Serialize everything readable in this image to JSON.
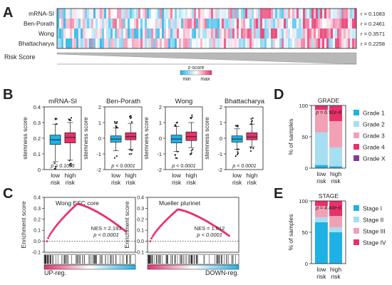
{
  "panels": {
    "A": "A",
    "B": "B",
    "C": "C",
    "D": "D",
    "E": "E"
  },
  "colors": {
    "blue": "#1fb1e6",
    "pink": "#e8306a",
    "lightblue": "#a6def2",
    "lightpink": "#f2a0b4",
    "purple": "#7e3d96",
    "grey": "#888888"
  },
  "chart_data": [
    {
      "type": "heatmap",
      "panel": "A",
      "rows": [
        {
          "label": "mRNA-SI",
          "r": "r = 0.1083"
        },
        {
          "label": "Ben-Porath",
          "r": "r = 0.2461"
        },
        {
          "label": "Wong",
          "r": "r = 0.3571"
        },
        {
          "label": "Bhattacharya",
          "r": "r = 0.2258"
        }
      ],
      "risk_label": "Risk Score",
      "colorbar": {
        "title": "z-score",
        "min_label": "min",
        "max_label": "max"
      }
    },
    {
      "type": "box",
      "panel": "B",
      "ylabel": "stemness score",
      "categories": [
        "low\nrisk",
        "high\nrisk"
      ],
      "cat_lines": [
        [
          "low",
          "risk"
        ],
        [
          "high",
          "risk"
        ]
      ],
      "plots": [
        {
          "title": "mRNA-SI",
          "ylim": [
            0,
            0.4
          ],
          "yticks": [
            0,
            0.1,
            0.2,
            0.3,
            0.4
          ],
          "ytick_labels": [
            "0",
            "0.1",
            "0.2",
            "0.3",
            "0.4"
          ],
          "p": "p = 0.1035",
          "boxes": [
            {
              "min": 0.05,
              "q1": 0.16,
              "median": 0.19,
              "q3": 0.22,
              "max": 0.29
            },
            {
              "min": 0.06,
              "q1": 0.17,
              "median": 0.205,
              "q3": 0.235,
              "max": 0.3
            }
          ]
        },
        {
          "title": "Ben-Porath",
          "ylim": [
            -2,
            2
          ],
          "yticks": [
            -2,
            -1,
            0,
            1,
            2
          ],
          "ytick_labels": [
            "-2",
            "-1",
            "0",
            "1",
            "2"
          ],
          "p": "p < 0.0001",
          "boxes": [
            {
              "min": -0.8,
              "q1": -0.25,
              "median": -0.05,
              "q3": 0.15,
              "max": 0.65
            },
            {
              "min": -0.7,
              "q1": -0.1,
              "median": 0.1,
              "q3": 0.35,
              "max": 0.95
            }
          ]
        },
        {
          "title": "Wong",
          "ylim": [
            -2,
            2
          ],
          "yticks": [
            -2,
            -1,
            0,
            1,
            2
          ],
          "ytick_labels": [
            "-2",
            "-1",
            "0",
            "1",
            "2"
          ],
          "p": "p < 0.0001",
          "boxes": [
            {
              "min": -0.85,
              "q1": -0.3,
              "median": -0.05,
              "q3": 0.2,
              "max": 0.75
            },
            {
              "min": -0.6,
              "q1": -0.15,
              "median": 0.1,
              "q3": 0.4,
              "max": 1.0
            }
          ]
        },
        {
          "title": "Bhattacharya",
          "ylim": [
            -2,
            2
          ],
          "yticks": [
            -2,
            -1,
            0,
            1,
            2
          ],
          "ytick_labels": [
            "-2",
            "-1",
            "0",
            "1",
            "2"
          ],
          "p": "p < 0.0001",
          "boxes": [
            {
              "min": -0.7,
              "q1": -0.25,
              "median": -0.05,
              "q3": 0.15,
              "max": 0.6
            },
            {
              "min": -0.55,
              "q1": -0.1,
              "median": 0.08,
              "q3": 0.35,
              "max": 0.9
            }
          ]
        }
      ]
    },
    {
      "type": "line",
      "panel": "C",
      "ylabel": "Enrichment score",
      "ylim": [
        -0.1,
        0.4
      ],
      "yticks": [
        -0.1,
        0,
        0.1,
        0.2,
        0.3,
        0.4
      ],
      "ytick_labels": [
        "-0.1",
        "0.0",
        "0.1",
        "0.2",
        "0.3",
        "0.4"
      ],
      "up_label": "UP-reg.",
      "down_label": "DOWN-reg.",
      "plots": [
        {
          "title": "Wong ESC core",
          "nes": "NES = 2.193",
          "p": "p < 0.0001",
          "peak": 0.34,
          "peak_pos": 0.35,
          "end": 0.09
        },
        {
          "title": "Mueller plurinet",
          "nes": "NES = 1.812",
          "p": "p < 0.0001",
          "peak": 0.29,
          "peak_pos": 0.32,
          "end": 0.05
        }
      ]
    },
    {
      "type": "bar",
      "panel": "D",
      "title": "GRADE",
      "ylabel": "% of samples",
      "ylim": [
        0,
        100
      ],
      "yticks": [
        0,
        50,
        100
      ],
      "categories": [
        "low\nrisk",
        "high\nrisk"
      ],
      "cat_lines": [
        [
          "low",
          "risk"
        ],
        [
          "high",
          "risk"
        ]
      ],
      "p": "p = 6.91e-8",
      "series": [
        {
          "name": "Grade 1",
          "color": "#1fb1e6",
          "values": [
            5,
            3
          ]
        },
        {
          "name": "Grade 2",
          "color": "#a6def2",
          "values": [
            52,
            30
          ]
        },
        {
          "name": "Grade 3",
          "color": "#f2a0b4",
          "values": [
            36,
            42
          ]
        },
        {
          "name": "Grade 4",
          "color": "#e8306a",
          "values": [
            6,
            24
          ]
        },
        {
          "name": "Grade X",
          "color": "#7e3d96",
          "values": [
            1,
            1
          ]
        }
      ]
    },
    {
      "type": "bar",
      "panel": "E",
      "title": "STAGE",
      "ylabel": "% of samples",
      "ylim": [
        0,
        100
      ],
      "yticks": [
        0,
        50,
        100
      ],
      "categories": [
        "low\nrisk",
        "high\nrisk"
      ],
      "cat_lines": [
        [
          "low",
          "risk"
        ],
        [
          "high",
          "risk"
        ]
      ],
      "p": "p = 4.84e-6",
      "series": [
        {
          "name": "Stage I",
          "color": "#1fb1e6",
          "values": [
            66,
            50
          ]
        },
        {
          "name": "Stage II",
          "color": "#a6def2",
          "values": [
            8,
            8
          ]
        },
        {
          "name": "Stage III",
          "color": "#f2a0b4",
          "values": [
            18,
            18
          ]
        },
        {
          "name": "Stage IV",
          "color": "#e8306a",
          "values": [
            8,
            24
          ]
        }
      ]
    }
  ]
}
